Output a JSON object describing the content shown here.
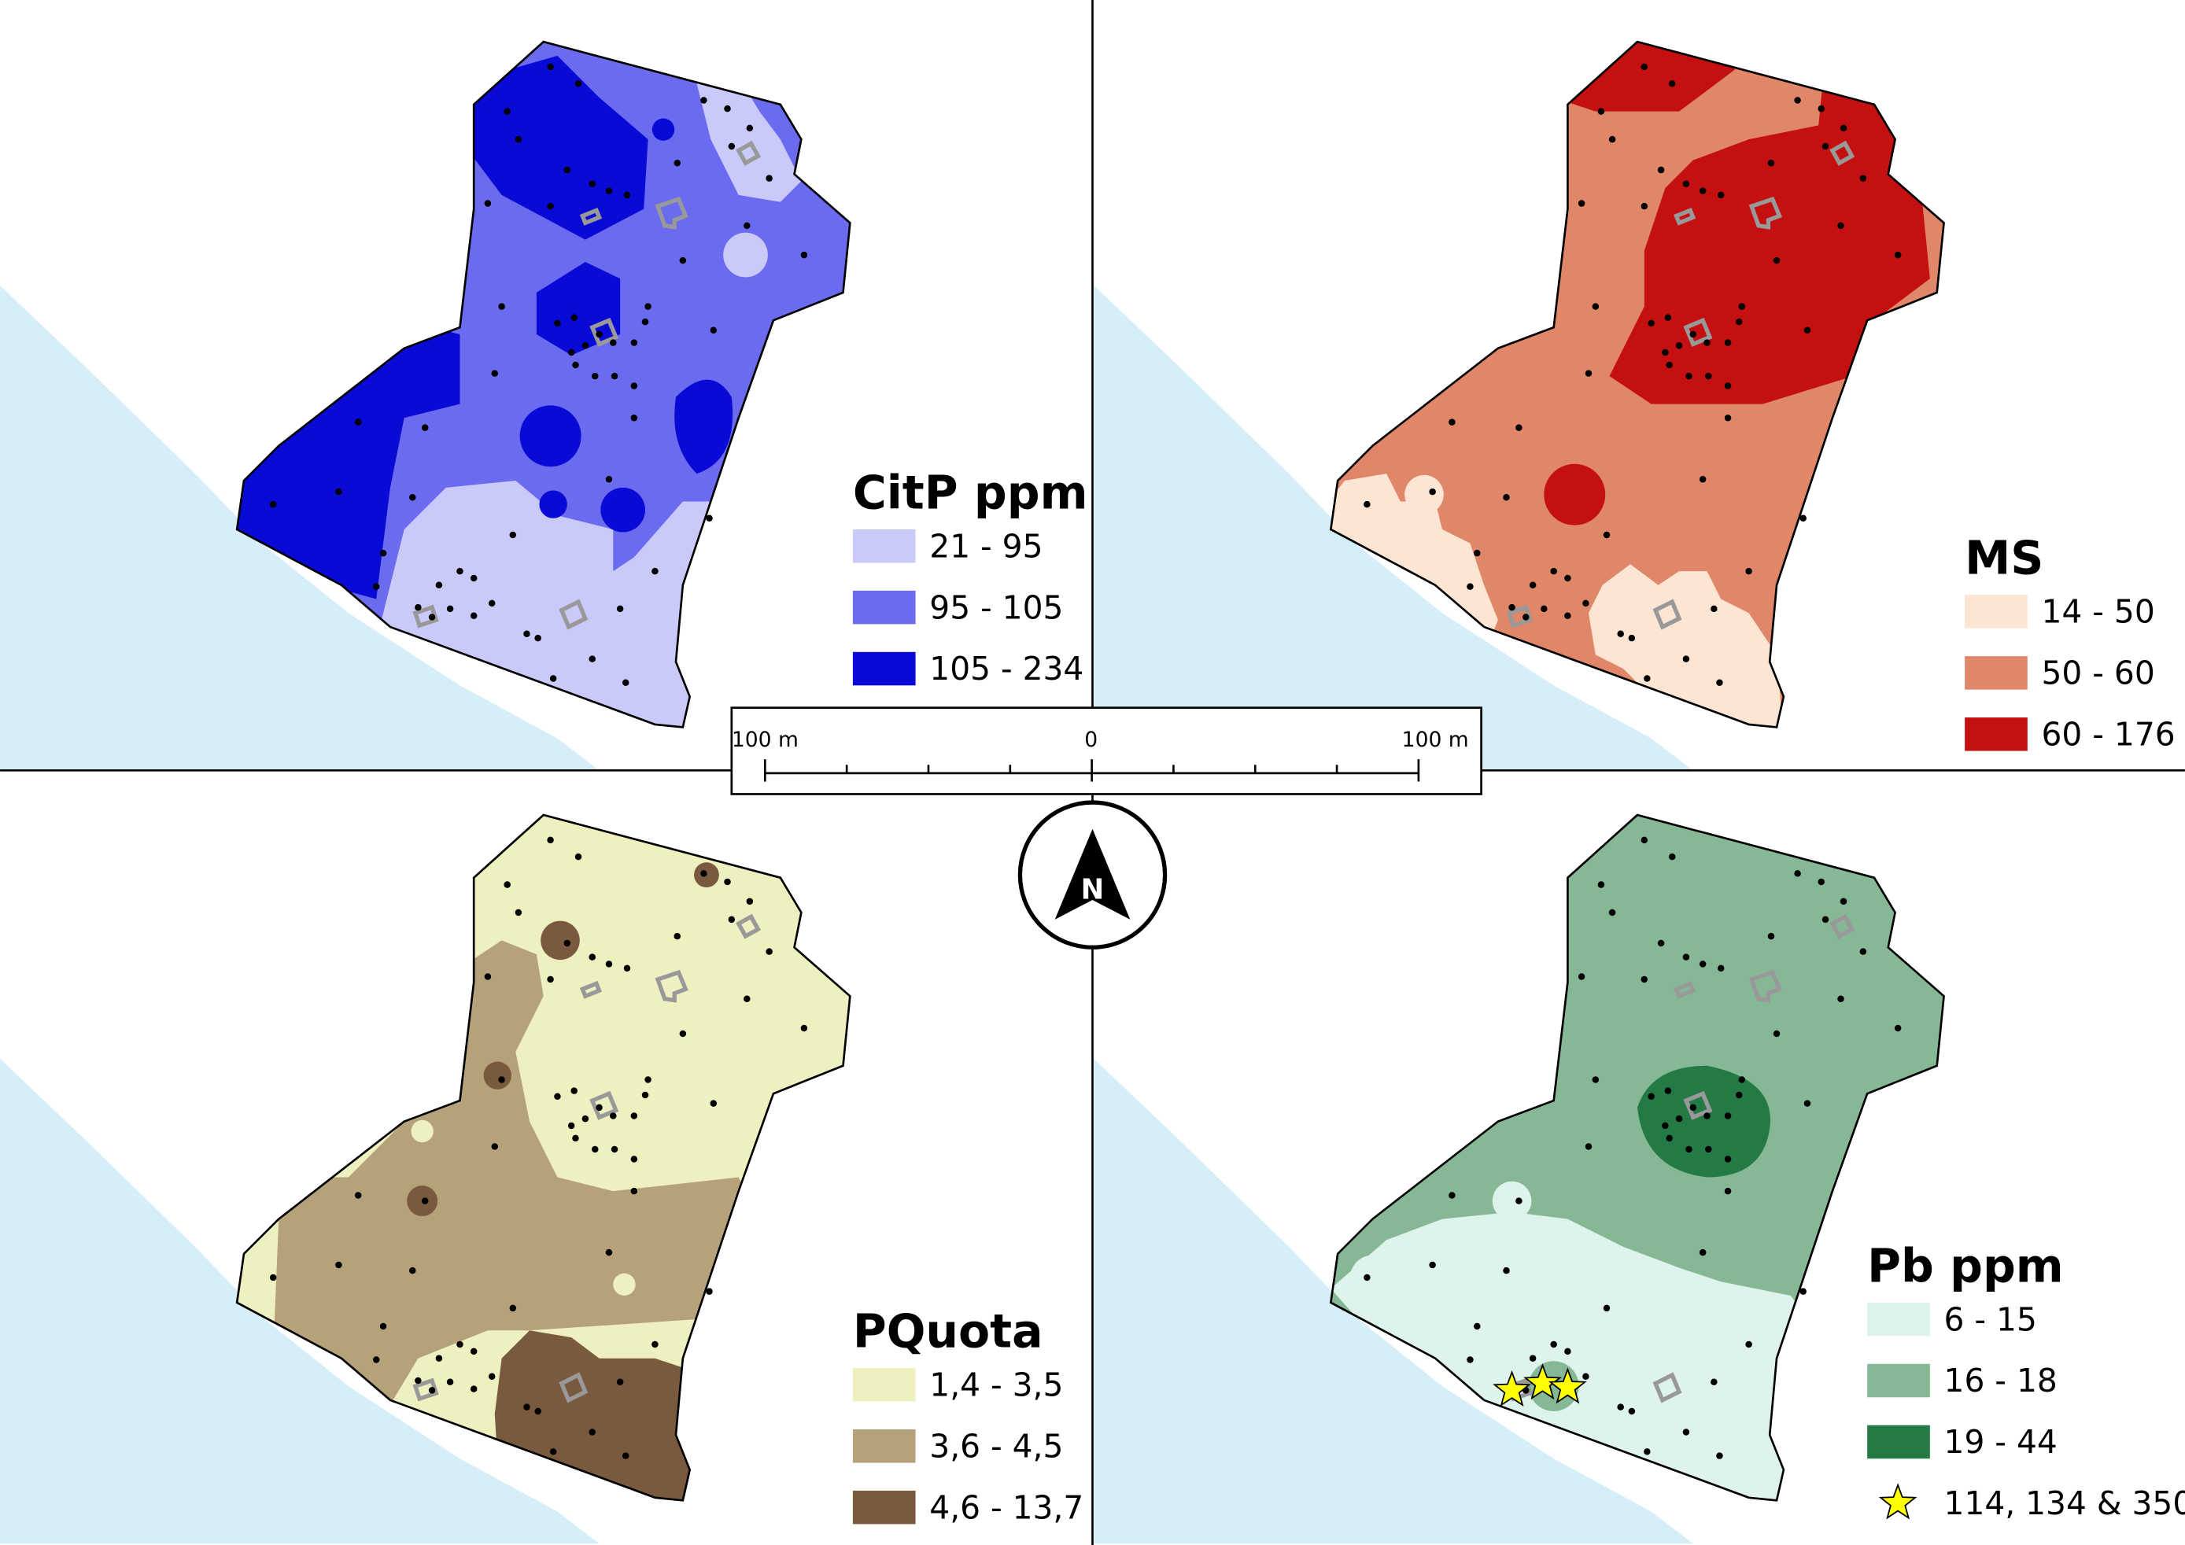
{
  "panels": [
    {
      "legend": {
        "title": "CitP ppm",
        "classes": [
          {
            "label": "21 - 95",
            "color": "#c9c9fa"
          },
          {
            "label": "95 - 105",
            "color": "#6b6bef"
          },
          {
            "label": "105 - 234",
            "color": "#0a0ad6"
          }
        ]
      }
    },
    {
      "legend": {
        "title": "MS",
        "classes": [
          {
            "label": "14 - 50",
            "color": "#fde5d3"
          },
          {
            "label": "50 - 60",
            "color": "#e0876a"
          },
          {
            "label": "60 - 176",
            "color": "#c41010"
          }
        ]
      }
    },
    {
      "legend": {
        "title": "PQuota",
        "classes": [
          {
            "label": "1,4 - 3,5",
            "color": "#eef0bf"
          },
          {
            "label": "3,6 - 4,5",
            "color": "#b5a27b"
          },
          {
            "label": "4,6 - 13,7",
            "color": "#7a5a3e"
          }
        ]
      }
    },
    {
      "legend": {
        "title": "Pb ppm",
        "classes": [
          {
            "label": "6 - 15",
            "color": "#def3ec"
          },
          {
            "label": "16 - 18",
            "color": "#86b896"
          },
          {
            "label": "19 - 44",
            "color": "#237a45"
          }
        ],
        "star": {
          "label": "114, 134 & 350",
          "color": "#ffff00"
        }
      }
    }
  ],
  "scale_bar": {
    "labels": [
      "100 m",
      "0",
      "100 m"
    ]
  },
  "north_arrow": {
    "label": "N"
  }
}
